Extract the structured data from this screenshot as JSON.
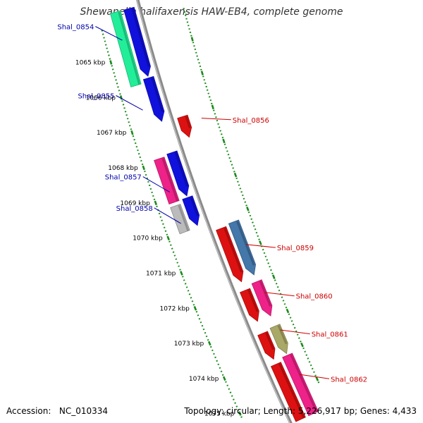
{
  "title": "Shewanella halifaxensis HAW-EB4, complete genome",
  "footer": {
    "accession_label": "Accession:",
    "accession": "NC_010334",
    "topology_label": "Topology:",
    "topology": "circular",
    "length_label": "Length:",
    "length": "5,226,917 bp",
    "genes_label": "Genes:",
    "genes": "4,433"
  },
  "colors": {
    "backbone": "#8a8a8a",
    "tick": "#1a8a1a",
    "left_label": "#0000aa",
    "right_label": "#cc0000"
  },
  "ruler_kbp": [
    1065,
    1066,
    1067,
    1068,
    1069,
    1070,
    1071,
    1072,
    1073,
    1074,
    1075
  ],
  "ruler_unit": "kbp",
  "left_labels": [
    {
      "name": "Shal_0854",
      "kbp": 1064.5
    },
    {
      "name": "Shal_0855",
      "kbp": 1066.5
    },
    {
      "name": "Shal_0857",
      "kbp": 1068.85
    },
    {
      "name": "Shal_0858",
      "kbp": 1069.75
    }
  ],
  "right_labels": [
    {
      "name": "Shal_0856",
      "kbp": 1067.2
    },
    {
      "name": "Shal_0859",
      "kbp": 1070.9
    },
    {
      "name": "Shal_0860",
      "kbp": 1072.3
    },
    {
      "name": "Shal_0861",
      "kbp": 1073.4
    },
    {
      "name": "Shal_0862",
      "kbp": 1074.7
    }
  ],
  "genes": [
    {
      "strand": "reverse",
      "lane": 2,
      "start_kbp": 1063.7,
      "end_kbp": 1065.8,
      "color": "#22ee99",
      "arrow": false
    },
    {
      "strand": "reverse",
      "lane": 1,
      "start_kbp": 1063.7,
      "end_kbp": 1065.65,
      "color": "#1111dd",
      "arrow": true
    },
    {
      "strand": "reverse",
      "lane": 1,
      "start_kbp": 1065.7,
      "end_kbp": 1066.95,
      "color": "#1111dd",
      "arrow": true
    },
    {
      "strand": "forward",
      "lane": 1,
      "start_kbp": 1067.0,
      "end_kbp": 1067.6,
      "color": "#dd1111",
      "arrow": true
    },
    {
      "strand": "reverse",
      "lane": 2,
      "start_kbp": 1067.9,
      "end_kbp": 1069.15,
      "color": "#ee2288",
      "arrow": false
    },
    {
      "strand": "reverse",
      "lane": 1,
      "start_kbp": 1067.85,
      "end_kbp": 1069.1,
      "color": "#1111dd",
      "arrow": true
    },
    {
      "strand": "reverse",
      "lane": 2,
      "start_kbp": 1069.25,
      "end_kbp": 1070.0,
      "color": "#bbbbbb",
      "arrow": false
    },
    {
      "strand": "reverse",
      "lane": 1,
      "start_kbp": 1069.15,
      "end_kbp": 1069.95,
      "color": "#1111dd",
      "arrow": true
    },
    {
      "strand": "forward",
      "lane": 1,
      "start_kbp": 1070.25,
      "end_kbp": 1071.8,
      "color": "#dd1111",
      "arrow": true
    },
    {
      "strand": "forward",
      "lane": 2,
      "start_kbp": 1070.2,
      "end_kbp": 1071.75,
      "color": "#4477aa",
      "arrow": true
    },
    {
      "strand": "forward",
      "lane": 1,
      "start_kbp": 1072.05,
      "end_kbp": 1072.95,
      "color": "#dd1111",
      "arrow": true
    },
    {
      "strand": "forward",
      "lane": 2,
      "start_kbp": 1071.95,
      "end_kbp": 1072.95,
      "color": "#ee2288",
      "arrow": true
    },
    {
      "strand": "forward",
      "lane": 1,
      "start_kbp": 1073.3,
      "end_kbp": 1074.05,
      "color": "#dd1111",
      "arrow": true
    },
    {
      "strand": "forward",
      "lane": 2,
      "start_kbp": 1073.25,
      "end_kbp": 1074.05,
      "color": "#aaa866",
      "arrow": true
    },
    {
      "strand": "forward",
      "lane": 1,
      "start_kbp": 1074.2,
      "end_kbp": 1075.8,
      "color": "#dd1111",
      "arrow": false
    },
    {
      "strand": "forward",
      "lane": 2,
      "start_kbp": 1074.1,
      "end_kbp": 1075.8,
      "color": "#ee2288",
      "arrow": false
    }
  ]
}
